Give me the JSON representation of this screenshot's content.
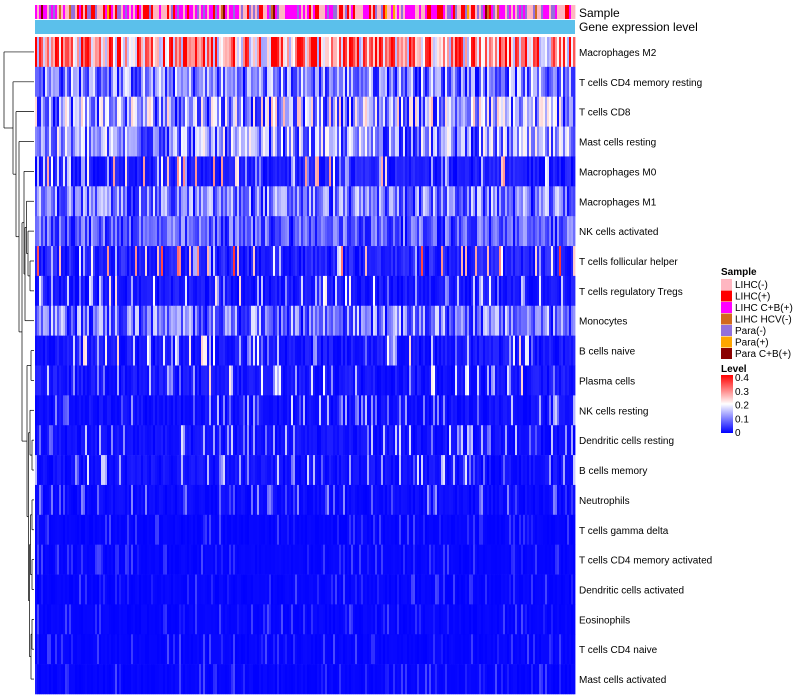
{
  "chart_data": {
    "type": "heatmap",
    "title": "",
    "annotation_tracks": [
      "Sample",
      "Gene expression level"
    ],
    "rows": [
      {
        "name": "Macrophages M2",
        "mean": 0.28
      },
      {
        "name": "T cells CD4 memory resting",
        "mean": 0.1
      },
      {
        "name": "T cells CD8",
        "mean": 0.13
      },
      {
        "name": "Mast cells resting",
        "mean": 0.11
      },
      {
        "name": "Macrophages M0",
        "mean": 0.05
      },
      {
        "name": "Macrophages M1",
        "mean": 0.09
      },
      {
        "name": "NK cells activated",
        "mean": 0.07
      },
      {
        "name": "T cells follicular helper",
        "mean": 0.06
      },
      {
        "name": "T cells regulatory  Tregs",
        "mean": 0.04
      },
      {
        "name": "Monocytes",
        "mean": 0.09
      },
      {
        "name": "B cells naive",
        "mean": 0.04
      },
      {
        "name": "Plasma cells",
        "mean": 0.04
      },
      {
        "name": "NK cells resting",
        "mean": 0.03
      },
      {
        "name": "Dendritic cells resting",
        "mean": 0.03
      },
      {
        "name": "B cells memory",
        "mean": 0.03
      },
      {
        "name": "Neutrophils",
        "mean": 0.02
      },
      {
        "name": "T cells gamma delta",
        "mean": 0.01
      },
      {
        "name": "T cells CD4 memory activated",
        "mean": 0.01
      },
      {
        "name": "Dendritic cells activated",
        "mean": 0.01
      },
      {
        "name": "Eosinophils",
        "mean": 0.01
      },
      {
        "name": "T cells CD4 naive",
        "mean": 0.01
      },
      {
        "name": "Mast cells activated",
        "mean": 0.01
      }
    ],
    "sample_legend": {
      "title": "Sample",
      "items": [
        {
          "label": "LIHC(-)",
          "color": "#ffb6c1"
        },
        {
          "label": "LIHC(+)",
          "color": "#ff0000"
        },
        {
          "label": "LIHC C+B(+)",
          "color": "#ff00ff"
        },
        {
          "label": "LIHC HCV(-)",
          "color": "#d2691e"
        },
        {
          "label": "Para(-)",
          "color": "#9370db"
        },
        {
          "label": "Para(+)",
          "color": "#ffa500"
        },
        {
          "label": "Para C+B(+)",
          "color": "#8b0000"
        }
      ]
    },
    "level_legend": {
      "title": "Level",
      "ticks": [
        "0.4",
        "0.3",
        "0.2",
        "0.1",
        "0"
      ],
      "range": [
        0,
        0.4
      ],
      "colors": [
        "#0000ff",
        "#ffffff",
        "#ff0000"
      ]
    },
    "gene_expression_color": "#5bc0eb"
  }
}
